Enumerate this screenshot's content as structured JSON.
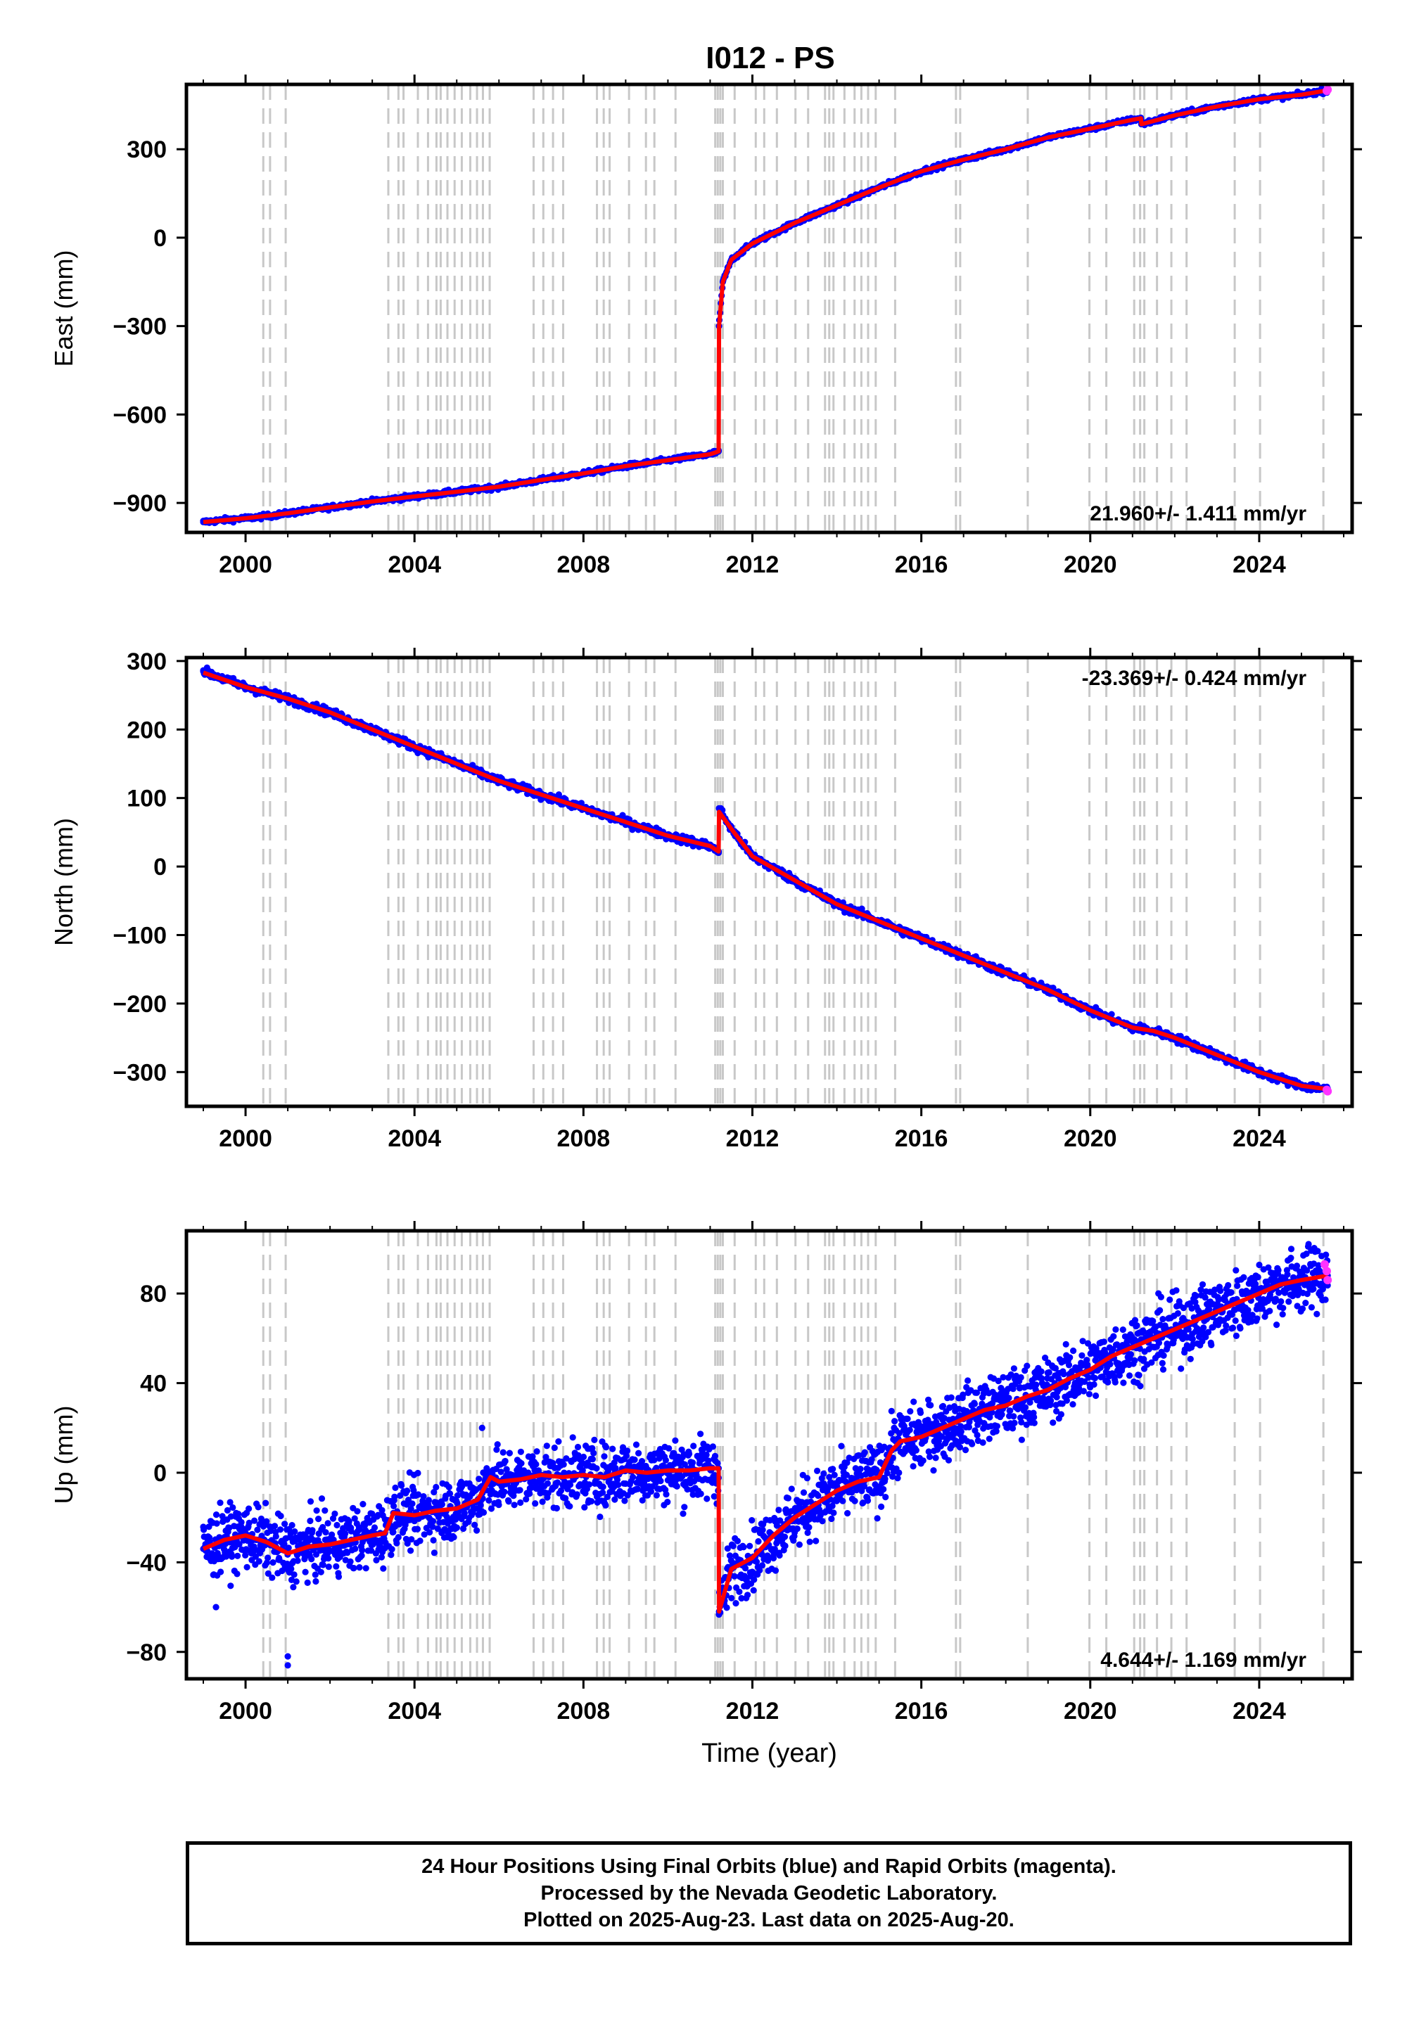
{
  "chart_title": "I012 - PS",
  "colors": {
    "final_orbits": "#0000ff",
    "rapid_orbits": "#ff33ff",
    "model_line": "#ff0000",
    "event_lines": "#c8c8c8",
    "axes": "#000000"
  },
  "chart_data": [
    {
      "type": "scatter",
      "ylabel": "East (mm)",
      "xlabel": "",
      "xlim": [
        1998.6,
        2026.2
      ],
      "ylim": [
        -1000,
        520
      ],
      "xticks": [
        "2000",
        "2004",
        "2008",
        "2012",
        "2016",
        "2020",
        "2024"
      ],
      "yticks": [
        "300",
        "0",
        "−300",
        "−600",
        "−900"
      ],
      "rate_label": "21.960+/- 1.411 mm/yr",
      "rate_position": "bottom-right",
      "series": [
        {
          "name": "Final Orbits",
          "color": "#0000ff",
          "x": [
            1999.0,
            1999.5,
            2000.0,
            2000.5,
            2001.0,
            2002.0,
            2003.0,
            2004.0,
            2005.0,
            2006.0,
            2007.0,
            2008.0,
            2009.0,
            2010.0,
            2011.0,
            2011.2,
            2011.21,
            2011.3,
            2011.5,
            2012.0,
            2013.0,
            2014.0,
            2015.0,
            2016.0,
            2017.0,
            2018.0,
            2019.0,
            2020.0,
            2021.0,
            2021.2,
            2021.21,
            2022.0,
            2023.0,
            2024.0,
            2025.0,
            2025.62
          ],
          "y": [
            -965,
            -958,
            -952,
            -945,
            -935,
            -915,
            -895,
            -878,
            -862,
            -845,
            -822,
            -800,
            -775,
            -755,
            -735,
            -725,
            -300,
            -150,
            -75,
            -20,
            50,
            110,
            170,
            225,
            265,
            300,
            340,
            370,
            400,
            405,
            385,
            415,
            445,
            470,
            485,
            500
          ]
        },
        {
          "name": "Rapid Orbits",
          "color": "#ff33ff",
          "x": [
            2025.6,
            2025.62
          ],
          "y": [
            498,
            502
          ]
        }
      ],
      "model": {
        "x": [
          1999.0,
          2000.0,
          2001.0,
          2002.0,
          2003.0,
          2004.0,
          2005.0,
          2006.0,
          2007.0,
          2008.0,
          2009.0,
          2010.0,
          2011.0,
          2011.2,
          2011.21,
          2011.3,
          2011.5,
          2012.0,
          2013.0,
          2014.0,
          2015.0,
          2016.0,
          2017.0,
          2018.0,
          2019.0,
          2020.0,
          2021.0,
          2021.2,
          2021.21,
          2022.0,
          2023.0,
          2024.0,
          2025.0,
          2025.62
        ],
        "y": [
          -965,
          -952,
          -935,
          -915,
          -895,
          -878,
          -862,
          -845,
          -822,
          -800,
          -775,
          -755,
          -735,
          -725,
          -300,
          -150,
          -75,
          -20,
          50,
          110,
          170,
          225,
          265,
          300,
          340,
          370,
          400,
          405,
          385,
          415,
          445,
          470,
          485,
          500
        ]
      }
    },
    {
      "type": "scatter",
      "ylabel": "North (mm)",
      "xlabel": "",
      "xlim": [
        1998.6,
        2026.2
      ],
      "ylim": [
        -350,
        305
      ],
      "xticks": [
        "2000",
        "2004",
        "2008",
        "2012",
        "2016",
        "2020",
        "2024"
      ],
      "yticks": [
        "300",
        "200",
        "100",
        "0",
        "−100",
        "−200",
        "−300"
      ],
      "rate_label": "-23.369+/- 0.424 mm/yr",
      "rate_position": "top-right",
      "series": [
        {
          "name": "Final Orbits",
          "color": "#0000ff",
          "x": [
            1999.0,
            2000.0,
            2001.0,
            2002.0,
            2003.0,
            2004.0,
            2005.0,
            2006.0,
            2007.0,
            2008.0,
            2009.0,
            2010.0,
            2011.0,
            2011.2,
            2011.21,
            2011.5,
            2012.0,
            2013.0,
            2014.0,
            2015.0,
            2016.0,
            2017.0,
            2018.0,
            2019.0,
            2020.0,
            2021.0,
            2021.5,
            2022.0,
            2023.0,
            2024.0,
            2025.0,
            2025.62
          ],
          "y": [
            285,
            262,
            245,
            225,
            200,
            175,
            150,
            125,
            105,
            85,
            65,
            45,
            30,
            22,
            85,
            55,
            15,
            -20,
            -55,
            -80,
            -105,
            -130,
            -155,
            -180,
            -210,
            -235,
            -240,
            -250,
            -275,
            -300,
            -320,
            -325
          ]
        },
        {
          "name": "Rapid Orbits",
          "color": "#ff33ff",
          "x": [
            2025.6,
            2025.62
          ],
          "y": [
            -326,
            -328
          ]
        }
      ],
      "model": {
        "x": [
          1999.0,
          2000.0,
          2001.0,
          2002.0,
          2003.0,
          2004.0,
          2005.0,
          2006.0,
          2007.0,
          2008.0,
          2009.0,
          2010.0,
          2011.0,
          2011.2,
          2011.21,
          2011.5,
          2012.0,
          2013.0,
          2014.0,
          2015.0,
          2016.0,
          2017.0,
          2018.0,
          2019.0,
          2020.0,
          2021.0,
          2021.5,
          2022.0,
          2023.0,
          2024.0,
          2025.0,
          2025.62
        ],
        "y": [
          283,
          262,
          245,
          225,
          200,
          175,
          150,
          125,
          105,
          85,
          65,
          45,
          30,
          22,
          80,
          55,
          15,
          -20,
          -55,
          -80,
          -105,
          -130,
          -155,
          -180,
          -210,
          -235,
          -240,
          -250,
          -275,
          -300,
          -320,
          -325
        ]
      }
    },
    {
      "type": "scatter",
      "ylabel": "Up (mm)",
      "xlabel": "Time (year)",
      "xlim": [
        1998.6,
        2026.2
      ],
      "ylim": [
        -92,
        108
      ],
      "xticks": [
        "2000",
        "2004",
        "2008",
        "2012",
        "2016",
        "2020",
        "2024"
      ],
      "yticks": [
        "80",
        "40",
        "0",
        "−40",
        "−80"
      ],
      "rate_label": "4.644+/- 1.169 mm/yr",
      "rate_position": "bottom-right",
      "series": [
        {
          "name": "Final Orbits",
          "color": "#0000ff",
          "x": [
            1999.0,
            1999.5,
            2000.0,
            2000.5,
            2001.0,
            2001.5,
            2002.0,
            2002.5,
            2003.0,
            2003.3,
            2003.5,
            2004.0,
            2004.5,
            2005.0,
            2005.5,
            2005.8,
            2006.0,
            2006.5,
            2007.0,
            2007.5,
            2008.0,
            2008.5,
            2009.0,
            2009.5,
            2010.0,
            2010.5,
            2011.0,
            2011.2,
            2011.21,
            2011.5,
            2012.0,
            2012.5,
            2013.0,
            2013.5,
            2014.0,
            2014.5,
            2015.0,
            2015.3,
            2015.5,
            2016.0,
            2016.5,
            2017.0,
            2017.5,
            2018.0,
            2018.5,
            2019.0,
            2019.5,
            2020.0,
            2020.5,
            2021.0,
            2021.5,
            2022.0,
            2022.5,
            2023.0,
            2023.5,
            2024.0,
            2024.5,
            2025.0,
            2025.62
          ],
          "y": [
            -34,
            -30,
            -28,
            -31,
            -36,
            -33,
            -32,
            -30,
            -28,
            -27,
            -18,
            -19,
            -17,
            -16,
            -12,
            -2,
            -4,
            -3,
            -1,
            -2,
            -1,
            -2,
            1,
            0,
            1,
            1,
            2,
            2,
            -62,
            -43,
            -38,
            -28,
            -20,
            -14,
            -8,
            -4,
            -2,
            10,
            14,
            16,
            20,
            24,
            28,
            30,
            34,
            37,
            42,
            46,
            52,
            56,
            60,
            64,
            68,
            72,
            76,
            80,
            84,
            86,
            88
          ]
        },
        {
          "name": "Rapid Orbits",
          "color": "#ff33ff",
          "x": [
            2025.55,
            2025.6,
            2025.62
          ],
          "y": [
            93,
            90,
            86
          ]
        }
      ],
      "model": {
        "x": [
          1999.0,
          1999.5,
          2000.0,
          2000.5,
          2001.0,
          2001.5,
          2002.0,
          2002.5,
          2003.0,
          2003.3,
          2003.5,
          2004.0,
          2004.5,
          2005.0,
          2005.5,
          2005.8,
          2006.0,
          2006.5,
          2007.0,
          2007.5,
          2008.0,
          2008.5,
          2009.0,
          2009.5,
          2010.0,
          2010.5,
          2011.0,
          2011.2,
          2011.21,
          2011.5,
          2012.0,
          2012.5,
          2013.0,
          2013.5,
          2014.0,
          2014.5,
          2015.0,
          2015.3,
          2015.5,
          2016.0,
          2016.5,
          2017.0,
          2017.5,
          2018.0,
          2018.5,
          2019.0,
          2019.5,
          2020.0,
          2020.5,
          2021.0,
          2021.5,
          2022.0,
          2022.5,
          2023.0,
          2023.5,
          2024.0,
          2024.5,
          2025.0,
          2025.62
        ],
        "y": [
          -34,
          -30,
          -28,
          -31,
          -36,
          -33,
          -32,
          -30,
          -28,
          -27,
          -18,
          -19,
          -17,
          -16,
          -12,
          -2,
          -4,
          -3,
          -1,
          -2,
          -1,
          -2,
          1,
          0,
          1,
          1,
          2,
          2,
          -62,
          -43,
          -38,
          -28,
          -20,
          -14,
          -8,
          -4,
          -2,
          10,
          14,
          16,
          20,
          24,
          28,
          30,
          34,
          37,
          42,
          46,
          52,
          56,
          60,
          64,
          68,
          72,
          76,
          80,
          84,
          86,
          88
        ]
      }
    }
  ],
  "event_lines_years": [
    2000.42,
    2000.58,
    2000.95,
    2003.38,
    2003.62,
    2003.74,
    2004.08,
    2004.32,
    2004.52,
    2004.62,
    2004.78,
    2004.95,
    2005.12,
    2005.32,
    2005.48,
    2005.62,
    2005.78,
    2006.82,
    2007.05,
    2007.28,
    2007.52,
    2008.32,
    2008.48,
    2008.62,
    2009.08,
    2009.48,
    2009.68,
    2010.18,
    2011.12,
    2011.18,
    2011.24,
    2011.3,
    2011.58,
    2012.08,
    2012.28,
    2012.58,
    2013.02,
    2013.32,
    2013.72,
    2013.82,
    2013.92,
    2014.18,
    2014.42,
    2014.58,
    2014.74,
    2014.92,
    2015.38,
    2016.82,
    2016.92,
    2018.52,
    2019.98,
    2020.38,
    2021.04,
    2021.18,
    2021.28,
    2021.58,
    2021.92,
    2022.28,
    2023.42,
    2024.02,
    2025.52
  ],
  "footer": {
    "line1": "24 Hour Positions Using Final Orbits (blue) and Rapid Orbits (magenta).",
    "line2": "Processed by the Nevada Geodetic Laboratory.",
    "line3": "Plotted on 2025-Aug-23. Last data on 2025-Aug-20."
  }
}
